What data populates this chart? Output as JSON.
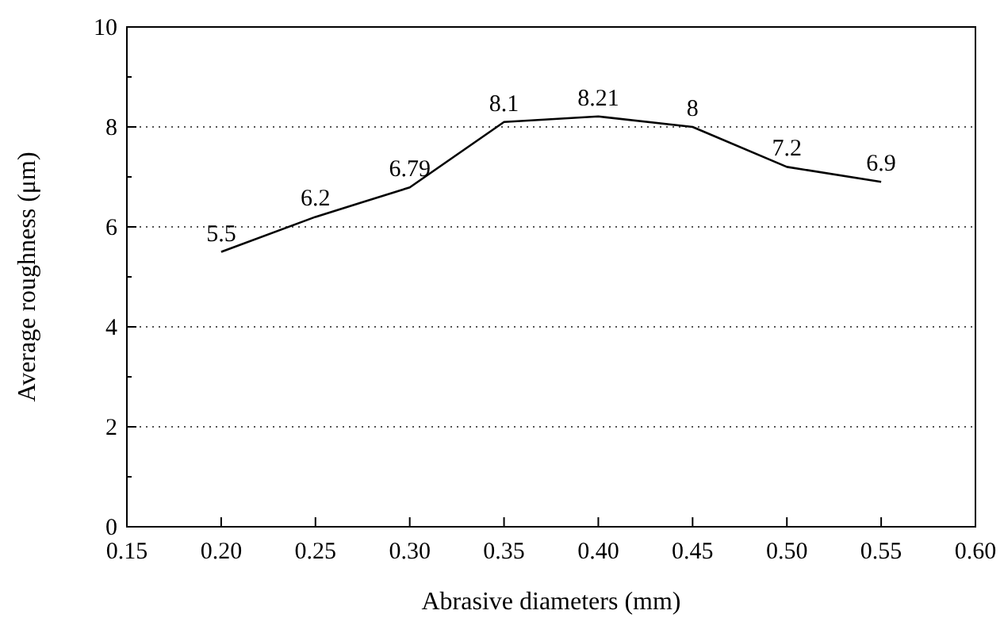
{
  "chart_data": {
    "type": "line",
    "xlabel": "Abrasive diameters (mm)",
    "ylabel": "Average roughness (μm)",
    "x": [
      0.2,
      0.25,
      0.3,
      0.35,
      0.4,
      0.45,
      0.5,
      0.55
    ],
    "series": [
      {
        "color": "#000000",
        "values": [
          5.5,
          6.2,
          6.79,
          8.1,
          8.21,
          8,
          7.2,
          6.9
        ]
      }
    ],
    "data_labels": true,
    "xlim": [
      0.15,
      0.6
    ],
    "xticks": [
      {
        "value": 0.15,
        "label": "0.15"
      },
      {
        "value": 0.2,
        "label": "0.20"
      },
      {
        "value": 0.25,
        "label": "0.25"
      },
      {
        "value": 0.3,
        "label": "0.30"
      },
      {
        "value": 0.35,
        "label": "0.35"
      },
      {
        "value": 0.4,
        "label": "0.40"
      },
      {
        "value": 0.45,
        "label": "0.45"
      },
      {
        "value": 0.5,
        "label": "0.50"
      },
      {
        "value": 0.55,
        "label": "0.55"
      },
      {
        "value": 0.6,
        "label": "0.60"
      }
    ],
    "ylim": [
      0,
      10
    ],
    "yticks": [
      0,
      {
        "value": 1,
        "label": null
      },
      2,
      {
        "value": 3,
        "label": null
      },
      4,
      {
        "value": 5,
        "label": null
      },
      6,
      {
        "value": 7,
        "label": null
      },
      8,
      {
        "value": 9,
        "label": null
      },
      10
    ],
    "grid": "y",
    "marker": "none",
    "line_style": "solid"
  }
}
